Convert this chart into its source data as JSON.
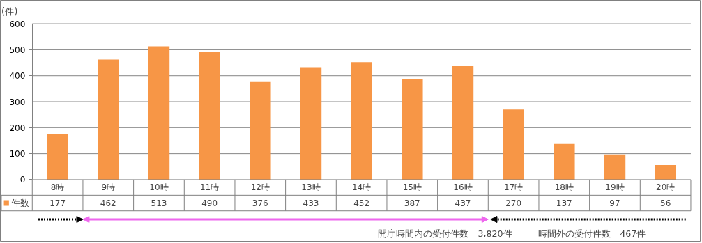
{
  "chart_data": {
    "type": "bar",
    "ylabel": "(件)",
    "categories": [
      "8時",
      "9時",
      "10時",
      "11時",
      "12時",
      "13時",
      "14時",
      "15時",
      "16時",
      "17時",
      "18時",
      "19時",
      "20時"
    ],
    "series": [
      {
        "name": "件数",
        "color": "#f79646",
        "values": [
          177,
          462,
          513,
          490,
          376,
          433,
          452,
          387,
          437,
          270,
          137,
          97,
          56
        ]
      }
    ],
    "ylim": [
      0,
      600
    ],
    "yticks": [
      0,
      100,
      200,
      300,
      400,
      500,
      600
    ],
    "grid": "y",
    "data_labels": true,
    "annotations": [
      "開庁時間内の受付件数　3,820件",
      "時間外の受付件数　467件"
    ]
  }
}
